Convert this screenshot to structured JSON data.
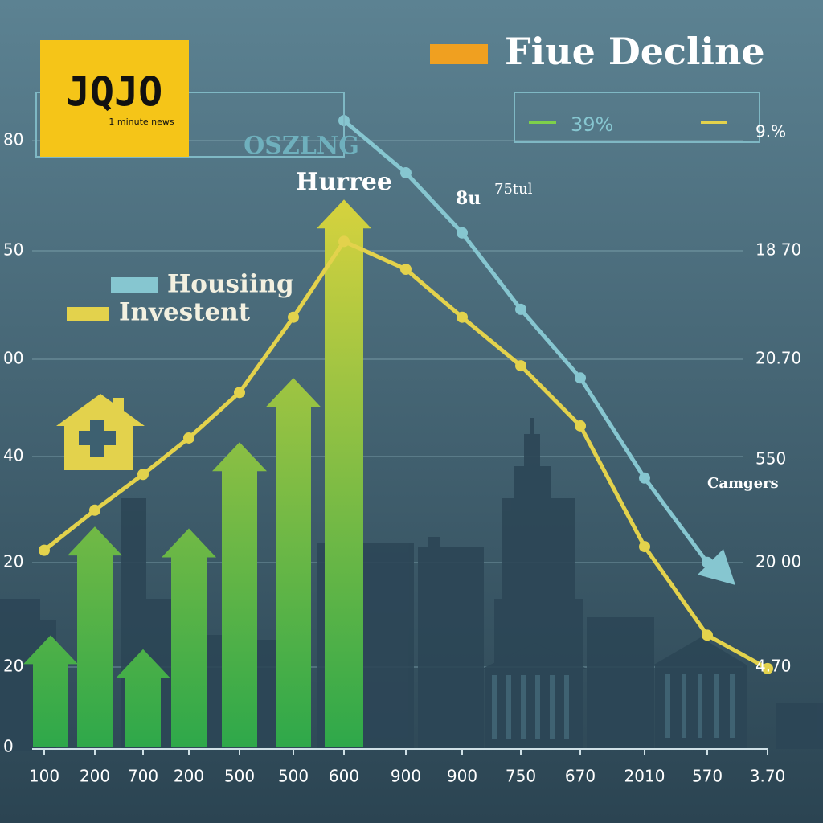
{
  "chart_data": {
    "type": "bar",
    "title": "Fiue Decline",
    "logo": "JQJO",
    "logo_subtitle": "1 minute news",
    "annotations": [
      "OSZLNG",
      "Hurree",
      "8u",
      "75tul",
      "Camgers"
    ],
    "box_label": "39%",
    "left_axis_labels": [
      "80",
      "50",
      "00",
      "40",
      "20",
      "20",
      "0"
    ],
    "right_axis_labels": [
      "9.%",
      "18 70",
      "20.70",
      "550",
      "20 00",
      "4.70"
    ],
    "categories": [
      "100",
      "200",
      "700",
      "200",
      "500",
      "500",
      "600",
      "900",
      "900",
      "750",
      "670",
      "2010",
      "570",
      "3.70"
    ],
    "ylim": [
      0,
      110
    ],
    "bars": {
      "colors": [
        "#d6d23e",
        "#2ea84a"
      ],
      "values": [
        18.5,
        36.4,
        16.2,
        36.1,
        50.3,
        60.9,
        90.3,
        null,
        null,
        null,
        null,
        null,
        null,
        null
      ]
    },
    "series": [
      {
        "name": "Housiing",
        "color": "#86c6d0",
        "values": [
          null,
          null,
          null,
          null,
          null,
          null,
          103.3,
          94.7,
          84.8,
          72.2,
          60.9,
          44.4,
          30.5,
          null
        ]
      },
      {
        "name": "Investent",
        "color": "#e3d24c",
        "values": [
          32.5,
          39.1,
          45.0,
          51.0,
          58.5,
          70.9,
          83.4,
          78.8,
          70.9,
          62.9,
          53.0,
          33.1,
          18.5,
          13.0
        ]
      }
    ]
  }
}
